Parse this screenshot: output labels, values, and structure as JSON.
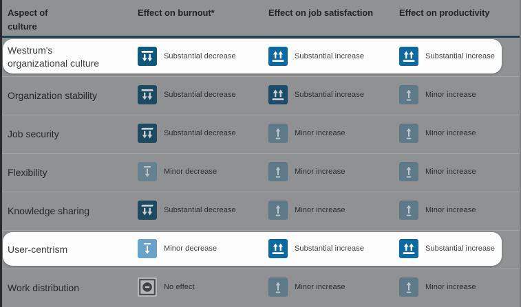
{
  "chart_data": {
    "type": "table",
    "columns": [
      {
        "label": "Aspect of culture"
      },
      {
        "label": "Effect on burnout*"
      },
      {
        "label": "Effect on job satisfaction"
      },
      {
        "label": "Effect on productivity"
      }
    ],
    "rows": [
      {
        "label": "Westrum's organizational culture",
        "highlighted": true,
        "effects": [
          {
            "type": "substantial-decrease",
            "label": "Substantial decrease"
          },
          {
            "type": "substantial-increase",
            "label": "Substantial increase"
          },
          {
            "type": "substantial-increase",
            "label": "Substantial increase"
          }
        ]
      },
      {
        "label": "Organization stability",
        "highlighted": false,
        "effects": [
          {
            "type": "substantial-decrease",
            "label": "Substantial decrease"
          },
          {
            "type": "substantial-increase",
            "label": "Substantial increase"
          },
          {
            "type": "minor-increase",
            "label": "Minor increase"
          }
        ]
      },
      {
        "label": "Job security",
        "highlighted": false,
        "effects": [
          {
            "type": "substantial-decrease",
            "label": "Substantial decrease"
          },
          {
            "type": "minor-increase",
            "label": "Minor increase"
          },
          {
            "type": "minor-increase",
            "label": "Minor increase"
          }
        ]
      },
      {
        "label": "Flexibility",
        "highlighted": false,
        "effects": [
          {
            "type": "minor-decrease",
            "label": "Minor decrease"
          },
          {
            "type": "minor-increase",
            "label": "Minor increase"
          },
          {
            "type": "minor-increase",
            "label": "Minor increase"
          }
        ]
      },
      {
        "label": "Knowledge sharing",
        "highlighted": false,
        "effects": [
          {
            "type": "substantial-decrease",
            "label": "Substantial decrease"
          },
          {
            "type": "minor-increase",
            "label": "Minor increase"
          },
          {
            "type": "minor-increase",
            "label": "Minor increase"
          }
        ]
      },
      {
        "label": "User-centrism",
        "highlighted": true,
        "effects": [
          {
            "type": "minor-decrease",
            "label": "Minor decrease"
          },
          {
            "type": "substantial-increase",
            "label": "Substantial increase"
          },
          {
            "type": "substantial-increase",
            "label": "Substantial increase"
          }
        ]
      },
      {
        "label": "Work distribution",
        "highlighted": false,
        "effects": [
          {
            "type": "no-effect",
            "label": "No effect"
          },
          {
            "type": "minor-increase",
            "label": "Minor increase"
          },
          {
            "type": "minor-increase",
            "label": "Minor increase"
          }
        ]
      }
    ]
  },
  "colors": {
    "dim_background": "#8f9193",
    "header_rule": "#1c4454",
    "highlight_card": "#fdfdfd",
    "row_separator": "#a1a4a6"
  },
  "icon_palette": {
    "highlight": {
      "substantial-decrease": {
        "bg": "#0e5a7c",
        "fg": "#ffffff"
      },
      "substantial-increase": {
        "bg": "#0d6aa1",
        "fg": "#ffffff"
      },
      "minor-decrease": {
        "bg": "#69a3ca",
        "fg": "#ffffff"
      },
      "minor-increase": {
        "bg": "#69a3ca",
        "fg": "#ffffff"
      },
      "no-effect": {
        "bg": "#f1f1f1",
        "border": "#5f6368",
        "circle": "#5f6368",
        "fg": "#ffffff"
      }
    },
    "dim": {
      "substantial-decrease": {
        "bg": "#1d4a5f",
        "fg": "#c8d0d5"
      },
      "substantial-increase": {
        "bg": "#1d4c68",
        "fg": "#c8d0d5"
      },
      "minor-increase": {
        "bg": "#5e7a88",
        "fg": "#bcc5cb"
      },
      "minor-decrease": {
        "bg": "#66828f",
        "fg": "#bcc5cb"
      },
      "no-effect": {
        "bg": "#b3b5b6",
        "border": "#45484a",
        "circle": "#3f4345",
        "fg": "#c9cacb"
      }
    }
  }
}
